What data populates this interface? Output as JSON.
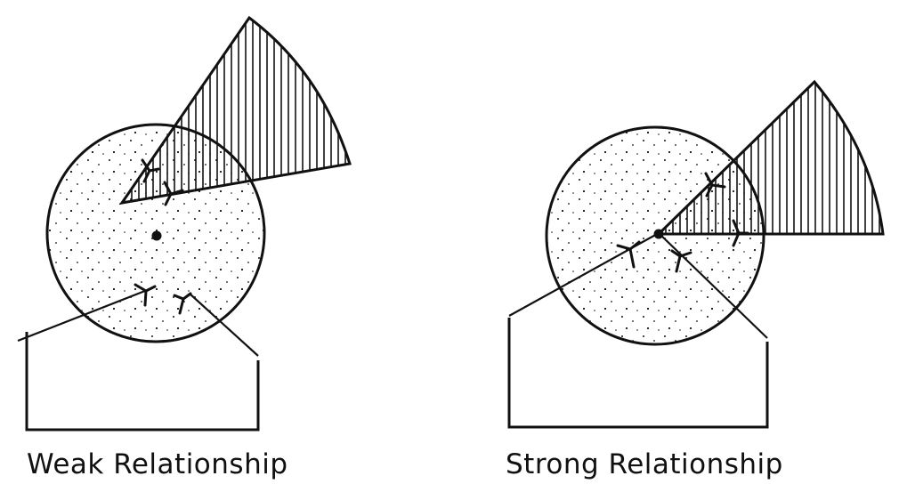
{
  "diagram": {
    "panels": [
      {
        "caption": "Weak Relationship"
      },
      {
        "caption": "Strong Relationship"
      }
    ],
    "colors": {
      "ink": "#111111",
      "background": "#ffffff"
    }
  }
}
